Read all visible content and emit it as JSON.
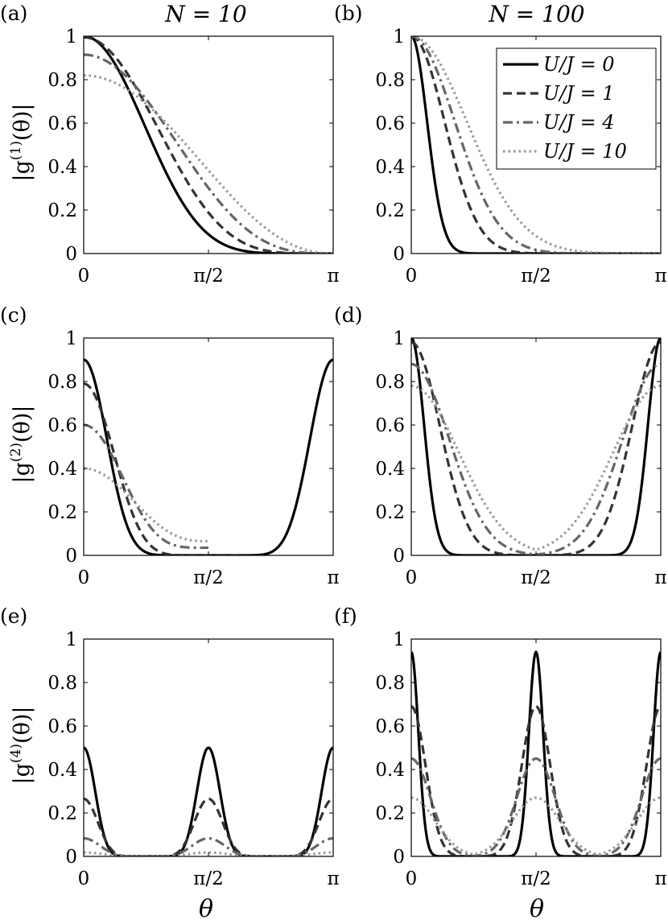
{
  "figure": {
    "column_titles": [
      "N = 10",
      "N = 100"
    ],
    "x_axis_label": "θ",
    "y_axis_labels": [
      "|g(1)(θ)|",
      "|g(2)(θ)|",
      "|g(4)(θ)|"
    ],
    "y_axis_parts": {
      "g1": {
        "pre": "|g",
        "sup": "(1)",
        "post": "(θ)|"
      },
      "g2": {
        "pre": "|g",
        "sup": "(2)",
        "post": "(θ)|"
      },
      "g4": {
        "pre": "|g",
        "sup": "(4)",
        "post": "(θ)|"
      }
    },
    "x_tick_labels": [
      "0",
      "π/2",
      "π"
    ],
    "y_tick_labels": [
      "0",
      "0.2",
      "0.4",
      "0.6",
      "0.8",
      "1"
    ],
    "legend": [
      "U/J = 0",
      "U/J = 1",
      "U/J = 4",
      "U/J = 10"
    ],
    "series_styles": [
      {
        "name": "U/J = 0",
        "color": "#000000",
        "dash": "solid"
      },
      {
        "name": "U/J = 1",
        "color": "#333333",
        "dash": "dashed"
      },
      {
        "name": "U/J = 4",
        "color": "#666666",
        "dash": "dashdot"
      },
      {
        "name": "U/J = 10",
        "color": "#999999",
        "dash": "dotted"
      }
    ]
  },
  "chart_data": [
    {
      "panel": "(a)",
      "type": "line",
      "title": "N = 10",
      "ylabel": "|g(1)(θ)|",
      "xlabel": "",
      "xlim": [
        0,
        3.14159
      ],
      "ylim": [
        0,
        1
      ],
      "x_ticks": [
        "0",
        "π/2",
        "π"
      ],
      "y_ticks": [
        "0",
        "0.2",
        "0.4",
        "0.6",
        "0.8",
        "1"
      ],
      "series": [
        {
          "name": "U/J = 0",
          "kind": "g1",
          "amp": 1.0,
          "n": 3.5
        },
        {
          "name": "U/J = 1",
          "kind": "g1",
          "amp": 0.995,
          "n": 2.4
        },
        {
          "name": "U/J = 4",
          "kind": "g1",
          "amp": 0.915,
          "n": 1.6
        },
        {
          "name": "U/J = 10",
          "kind": "g1",
          "amp": 0.82,
          "n": 1.1
        }
      ]
    },
    {
      "panel": "(b)",
      "type": "line",
      "title": "N = 100",
      "ylabel": "",
      "xlabel": "",
      "xlim": [
        0,
        3.14159
      ],
      "ylim": [
        0,
        1
      ],
      "x_ticks": [
        "0",
        "π/2",
        "π"
      ],
      "y_ticks": [
        "0",
        "0.2",
        "0.4",
        "0.6",
        "0.8",
        "1"
      ],
      "legend": [
        "U/J = 0",
        "U/J = 1",
        "U/J = 4",
        "U/J = 10"
      ],
      "series": [
        {
          "name": "U/J = 0",
          "kind": "gauss",
          "amp": 1.0,
          "c": 0,
          "s": 0.2
        },
        {
          "name": "U/J = 1",
          "kind": "gauss",
          "amp": 1.0,
          "c": 0,
          "s": 0.42
        },
        {
          "name": "U/J = 4",
          "kind": "gauss",
          "amp": 1.0,
          "c": 0,
          "s": 0.55
        },
        {
          "name": "U/J = 10",
          "kind": "gauss",
          "amp": 1.0,
          "c": 0,
          "s": 0.7
        }
      ]
    },
    {
      "panel": "(c)",
      "type": "line",
      "title": "",
      "ylabel": "|g(2)(θ)|",
      "xlabel": "",
      "xlim": [
        0,
        3.14159
      ],
      "ylim": [
        0,
        1
      ],
      "x_ticks": [
        "0",
        "π/2",
        "π"
      ],
      "y_ticks": [
        "0",
        "0.2",
        "0.4",
        "0.6",
        "0.8",
        "1"
      ],
      "series": [
        {
          "name": "U/J = 0",
          "kind": "g2",
          "amp": 0.9,
          "base": 0.0,
          "n": 6
        },
        {
          "name": "U/J = 1",
          "kind": "g2",
          "amp": 0.79,
          "base": 0.0,
          "n": 3.5
        },
        {
          "name": "U/J = 4",
          "kind": "g2",
          "amp": 0.6,
          "base": 0.035,
          "n": 2.2
        },
        {
          "name": "U/J = 10",
          "kind": "g2",
          "amp": 0.4,
          "base": 0.065,
          "n": 1.4
        }
      ]
    },
    {
      "panel": "(d)",
      "type": "line",
      "title": "",
      "ylabel": "",
      "xlabel": "",
      "xlim": [
        0,
        3.14159
      ],
      "ylim": [
        0,
        1
      ],
      "x_ticks": [
        "0",
        "π/2",
        "π"
      ],
      "y_ticks": [
        "0",
        "0.2",
        "0.4",
        "0.6",
        "0.8",
        "1"
      ],
      "series": [
        {
          "name": "U/J = 0",
          "kind": "gauss",
          "amp": 1.0,
          "c": 0,
          "s": 0.16,
          "mirror": true
        },
        {
          "name": "U/J = 1",
          "kind": "gauss",
          "amp": 0.98,
          "c": 0,
          "s": 0.36,
          "mirror": true
        },
        {
          "name": "U/J = 4",
          "kind": "gauss",
          "amp": 0.88,
          "c": 0,
          "s": 0.48,
          "mirror": true
        },
        {
          "name": "U/J = 10",
          "kind": "gauss",
          "amp": 0.78,
          "c": 0,
          "s": 0.6,
          "mirror": true
        }
      ]
    },
    {
      "panel": "(e)",
      "type": "line",
      "title": "",
      "ylabel": "|g(4)(θ)|",
      "xlabel": "θ",
      "xlim": [
        0,
        3.14159
      ],
      "ylim": [
        0,
        1
      ],
      "x_ticks": [
        "0",
        "π/2",
        "π"
      ],
      "y_ticks": [
        "0",
        "0.2",
        "0.4",
        "0.6",
        "0.8",
        "1"
      ],
      "series": [
        {
          "name": "U/J = 0",
          "kind": "g4",
          "amp": 0.5,
          "n": 6
        },
        {
          "name": "U/J = 1",
          "kind": "g4",
          "amp": 0.265,
          "n": 4
        },
        {
          "name": "U/J = 4",
          "kind": "g4",
          "amp": 0.083,
          "n": 3
        },
        {
          "name": "U/J = 10",
          "kind": "g4",
          "amp": 0.018,
          "n": 2
        }
      ]
    },
    {
      "panel": "(f)",
      "type": "line",
      "title": "",
      "ylabel": "",
      "xlabel": "θ",
      "xlim": [
        0,
        3.14159
      ],
      "ylim": [
        0,
        1
      ],
      "x_ticks": [
        "0",
        "π/2",
        "π"
      ],
      "y_ticks": [
        "0",
        "0.2",
        "0.4",
        "0.6",
        "0.8",
        "1"
      ],
      "series": [
        {
          "name": "U/J = 0",
          "kind": "peaks",
          "amp": 0.94,
          "s": 0.09
        },
        {
          "name": "U/J = 1",
          "kind": "peaks",
          "amp": 0.69,
          "s": 0.18
        },
        {
          "name": "U/J = 4",
          "kind": "peaks",
          "amp": 0.45,
          "s": 0.24
        },
        {
          "name": "U/J = 10",
          "kind": "peaks",
          "amp": 0.27,
          "s": 0.3
        }
      ]
    }
  ]
}
